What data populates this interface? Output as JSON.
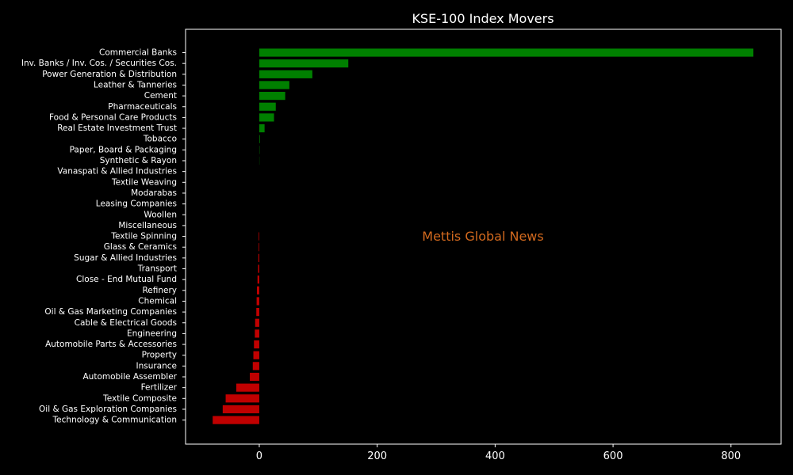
{
  "chart_data": {
    "type": "bar",
    "orientation": "horizontal",
    "title": "KSE-100 Index Movers",
    "xlabel": "",
    "ylabel": "",
    "xlim": [
      -125,
      885
    ],
    "xticks": [
      0,
      200,
      400,
      600,
      800
    ],
    "grid": false,
    "legend": "none",
    "watermark": "Mettis Global News",
    "colors": {
      "background": "#000000",
      "positive": "#008000",
      "negative": "#c00000",
      "text": "#ffffff",
      "axes": "#ffffff",
      "watermark": "#d2691e"
    },
    "categories": [
      "Commercial Banks",
      "Inv. Banks / Inv. Cos. / Securities Cos.",
      "Power Generation & Distribution",
      "Leather & Tanneries",
      "Cement",
      "Pharmaceuticals",
      "Food & Personal Care Products",
      "Real Estate Investment Trust",
      "Tobacco",
      "Paper, Board & Packaging",
      "Synthetic & Rayon",
      "Vanaspati & Allied Industries",
      "Textile Weaving",
      "Modarabas",
      "Leasing Companies",
      "Woollen",
      "Miscellaneous",
      "Textile Spinning",
      "Glass & Ceramics",
      "Sugar & Allied Industries",
      "Transport",
      "Close - End Mutual Fund",
      "Refinery",
      "Chemical",
      "Oil & Gas Marketing Companies",
      "Cable & Electrical Goods",
      "Engineering",
      "Automobile Parts & Accessories",
      "Property",
      "Insurance",
      "Automobile Assembler",
      "Fertilizer",
      "Textile Composite",
      "Oil & Gas Exploration Companies",
      "Technology & Communication"
    ],
    "values": [
      838,
      151,
      90,
      51,
      44,
      28,
      25,
      9,
      1,
      0.5,
      0.3,
      0,
      0,
      0,
      0,
      0,
      0,
      -1,
      -1,
      -1.5,
      -2,
      -3,
      -4,
      -4.5,
      -5,
      -7,
      -7.5,
      -9,
      -10,
      -11,
      -16,
      -39,
      -57,
      -62,
      -79
    ]
  }
}
